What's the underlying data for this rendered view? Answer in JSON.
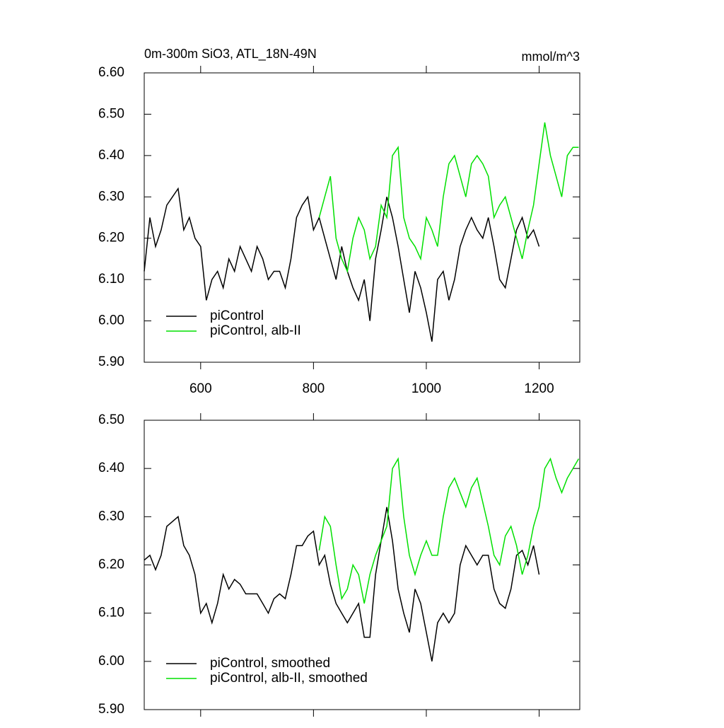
{
  "chart_data": [
    {
      "type": "line",
      "title": "0m-300m SiO3, ATL_18N-49N",
      "units": "mmol/m^3",
      "xlim": [
        500,
        1272
      ],
      "xticks": [
        600,
        800,
        1000,
        1200
      ],
      "xtick_labels": true,
      "ylim": [
        5.9,
        6.6
      ],
      "yticks": [
        {
          "value": 5.9,
          "label": "5.90"
        },
        {
          "value": 6.0,
          "label": "6.00"
        },
        {
          "value": 6.1,
          "label": "6.10"
        },
        {
          "value": 6.2,
          "label": "6.20"
        },
        {
          "value": 6.3,
          "label": "6.30"
        },
        {
          "value": 6.4,
          "label": "6.40"
        },
        {
          "value": 6.5,
          "label": "6.50"
        },
        {
          "value": 6.6,
          "label": "6.60"
        }
      ],
      "legend": "lower left",
      "series": [
        {
          "name": "piControl",
          "color": "#000000",
          "x": [
            500,
            510,
            520,
            530,
            540,
            550,
            560,
            570,
            580,
            590,
            600,
            610,
            620,
            630,
            640,
            650,
            660,
            670,
            680,
            690,
            700,
            710,
            720,
            730,
            740,
            750,
            760,
            770,
            780,
            790,
            800,
            810,
            820,
            830,
            840,
            850,
            860,
            870,
            880,
            890,
            900,
            910,
            920,
            930,
            940,
            950,
            960,
            970,
            980,
            990,
            1000,
            1010,
            1020,
            1030,
            1040,
            1050,
            1060,
            1070,
            1080,
            1090,
            1100,
            1110,
            1120,
            1130,
            1140,
            1150,
            1160,
            1170,
            1180,
            1190,
            1200
          ],
          "values": [
            6.12,
            6.25,
            6.18,
            6.22,
            6.28,
            6.3,
            6.32,
            6.22,
            6.25,
            6.2,
            6.18,
            6.05,
            6.1,
            6.12,
            6.08,
            6.15,
            6.12,
            6.18,
            6.15,
            6.12,
            6.18,
            6.15,
            6.1,
            6.12,
            6.12,
            6.08,
            6.15,
            6.25,
            6.28,
            6.3,
            6.22,
            6.25,
            6.2,
            6.15,
            6.1,
            6.18,
            6.12,
            6.08,
            6.05,
            6.1,
            6.0,
            6.15,
            6.22,
            6.3,
            6.25,
            6.18,
            6.1,
            6.02,
            6.12,
            6.08,
            6.02,
            5.95,
            6.1,
            6.12,
            6.05,
            6.1,
            6.18,
            6.22,
            6.25,
            6.22,
            6.2,
            6.25,
            6.18,
            6.1,
            6.08,
            6.15,
            6.22,
            6.25,
            6.2,
            6.22,
            6.18
          ]
        },
        {
          "name": "piControl, alb-II",
          "color": "#00e000",
          "x": [
            810,
            820,
            830,
            840,
            850,
            860,
            870,
            880,
            890,
            900,
            910,
            920,
            930,
            940,
            950,
            960,
            970,
            980,
            990,
            1000,
            1010,
            1020,
            1030,
            1040,
            1050,
            1060,
            1070,
            1080,
            1090,
            1100,
            1110,
            1120,
            1130,
            1140,
            1150,
            1160,
            1170,
            1180,
            1190,
            1200,
            1210,
            1220,
            1230,
            1240,
            1250,
            1260,
            1270
          ],
          "values": [
            6.25,
            6.3,
            6.35,
            6.2,
            6.15,
            6.12,
            6.2,
            6.25,
            6.22,
            6.15,
            6.18,
            6.28,
            6.25,
            6.4,
            6.42,
            6.25,
            6.2,
            6.18,
            6.15,
            6.25,
            6.22,
            6.18,
            6.3,
            6.38,
            6.4,
            6.35,
            6.3,
            6.38,
            6.4,
            6.38,
            6.35,
            6.25,
            6.28,
            6.3,
            6.25,
            6.2,
            6.15,
            6.22,
            6.28,
            6.38,
            6.48,
            6.4,
            6.35,
            6.3,
            6.4,
            6.42,
            6.42
          ]
        }
      ]
    },
    {
      "type": "line",
      "xlim": [
        500,
        1272
      ],
      "xticks": [
        600,
        800,
        1000,
        1200
      ],
      "xtick_labels": false,
      "ylim": [
        5.9,
        6.5
      ],
      "yticks": [
        {
          "value": 5.9,
          "label": "5.90"
        },
        {
          "value": 6.0,
          "label": "6.00"
        },
        {
          "value": 6.1,
          "label": "6.10"
        },
        {
          "value": 6.2,
          "label": "6.20"
        },
        {
          "value": 6.3,
          "label": "6.30"
        },
        {
          "value": 6.4,
          "label": "6.40"
        },
        {
          "value": 6.5,
          "label": "6.50"
        }
      ],
      "legend": "lower left",
      "series": [
        {
          "name": "piControl, smoothed",
          "color": "#000000",
          "x": [
            500,
            510,
            520,
            530,
            540,
            550,
            560,
            570,
            580,
            590,
            600,
            610,
            620,
            630,
            640,
            650,
            660,
            670,
            680,
            690,
            700,
            710,
            720,
            730,
            740,
            750,
            760,
            770,
            780,
            790,
            800,
            810,
            820,
            830,
            840,
            850,
            860,
            870,
            880,
            890,
            900,
            910,
            920,
            930,
            940,
            950,
            960,
            970,
            980,
            990,
            1000,
            1010,
            1020,
            1030,
            1040,
            1050,
            1060,
            1070,
            1080,
            1090,
            1100,
            1110,
            1120,
            1130,
            1140,
            1150,
            1160,
            1170,
            1180,
            1190,
            1200
          ],
          "values": [
            6.21,
            6.22,
            6.19,
            6.22,
            6.28,
            6.29,
            6.3,
            6.24,
            6.22,
            6.18,
            6.1,
            6.12,
            6.08,
            6.12,
            6.18,
            6.15,
            6.17,
            6.16,
            6.14,
            6.14,
            6.14,
            6.12,
            6.1,
            6.13,
            6.14,
            6.13,
            6.18,
            6.24,
            6.24,
            6.26,
            6.27,
            6.2,
            6.22,
            6.16,
            6.12,
            6.1,
            6.08,
            6.1,
            6.12,
            6.05,
            6.05,
            6.18,
            6.25,
            6.32,
            6.25,
            6.15,
            6.1,
            6.06,
            6.15,
            6.12,
            6.06,
            6.0,
            6.08,
            6.1,
            6.08,
            6.1,
            6.2,
            6.24,
            6.22,
            6.2,
            6.22,
            6.22,
            6.15,
            6.12,
            6.11,
            6.15,
            6.22,
            6.23,
            6.2,
            6.24,
            6.18
          ]
        },
        {
          "name": "piControl, alb-II, smoothed",
          "color": "#00e000",
          "x": [
            810,
            820,
            830,
            840,
            850,
            860,
            870,
            880,
            890,
            900,
            910,
            920,
            930,
            940,
            950,
            960,
            970,
            980,
            990,
            1000,
            1010,
            1020,
            1030,
            1040,
            1050,
            1060,
            1070,
            1080,
            1090,
            1100,
            1110,
            1120,
            1130,
            1140,
            1150,
            1160,
            1170,
            1180,
            1190,
            1200,
            1210,
            1220,
            1230,
            1240,
            1250,
            1260,
            1270
          ],
          "values": [
            6.23,
            6.3,
            6.28,
            6.2,
            6.13,
            6.15,
            6.2,
            6.18,
            6.12,
            6.18,
            6.22,
            6.25,
            6.28,
            6.4,
            6.42,
            6.3,
            6.22,
            6.18,
            6.22,
            6.25,
            6.22,
            6.22,
            6.3,
            6.36,
            6.38,
            6.35,
            6.32,
            6.36,
            6.38,
            6.33,
            6.28,
            6.22,
            6.2,
            6.26,
            6.28,
            6.24,
            6.18,
            6.22,
            6.28,
            6.32,
            6.4,
            6.42,
            6.38,
            6.35,
            6.38,
            6.4,
            6.42
          ]
        }
      ]
    }
  ]
}
